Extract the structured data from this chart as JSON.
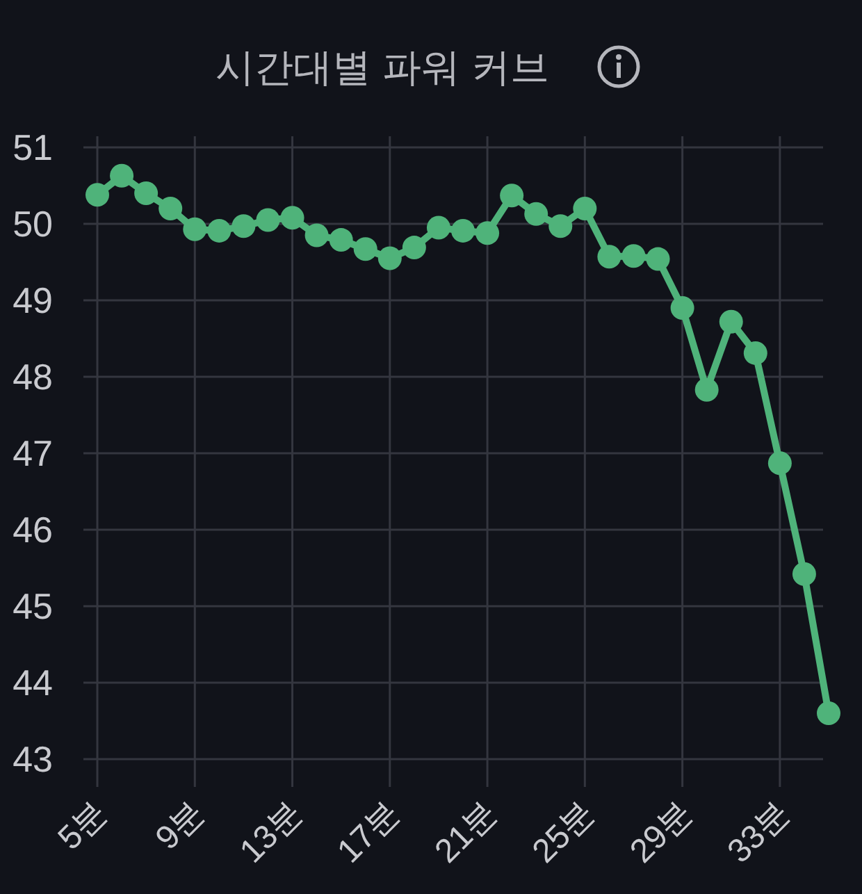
{
  "chart_data": {
    "type": "line",
    "title": "시간대별 파워 커브",
    "categories": [
      "5분",
      null,
      null,
      null,
      "9분",
      null,
      null,
      null,
      "13분",
      null,
      null,
      null,
      "17분",
      null,
      null,
      null,
      "21분",
      null,
      null,
      null,
      "25분",
      null,
      null,
      null,
      "29분",
      null,
      null,
      null,
      "33분",
      null,
      null
    ],
    "series": [
      {
        "color": "#4fb37a",
        "values": [
          50.38,
          50.63,
          50.4,
          50.2,
          49.93,
          49.91,
          49.97,
          50.05,
          50.08,
          49.85,
          49.79,
          49.67,
          49.55,
          49.69,
          49.95,
          49.91,
          49.88,
          50.37,
          50.13,
          49.97,
          50.2,
          49.57,
          49.58,
          49.54,
          48.9,
          47.83,
          48.72,
          48.31,
          46.87,
          45.42,
          43.6
        ]
      }
    ],
    "ylim": [
      43,
      51
    ],
    "yticks": [
      43,
      44,
      45,
      46,
      47,
      48,
      49,
      50,
      51
    ],
    "grid": true,
    "marker": "circle",
    "line_style": "solid"
  }
}
